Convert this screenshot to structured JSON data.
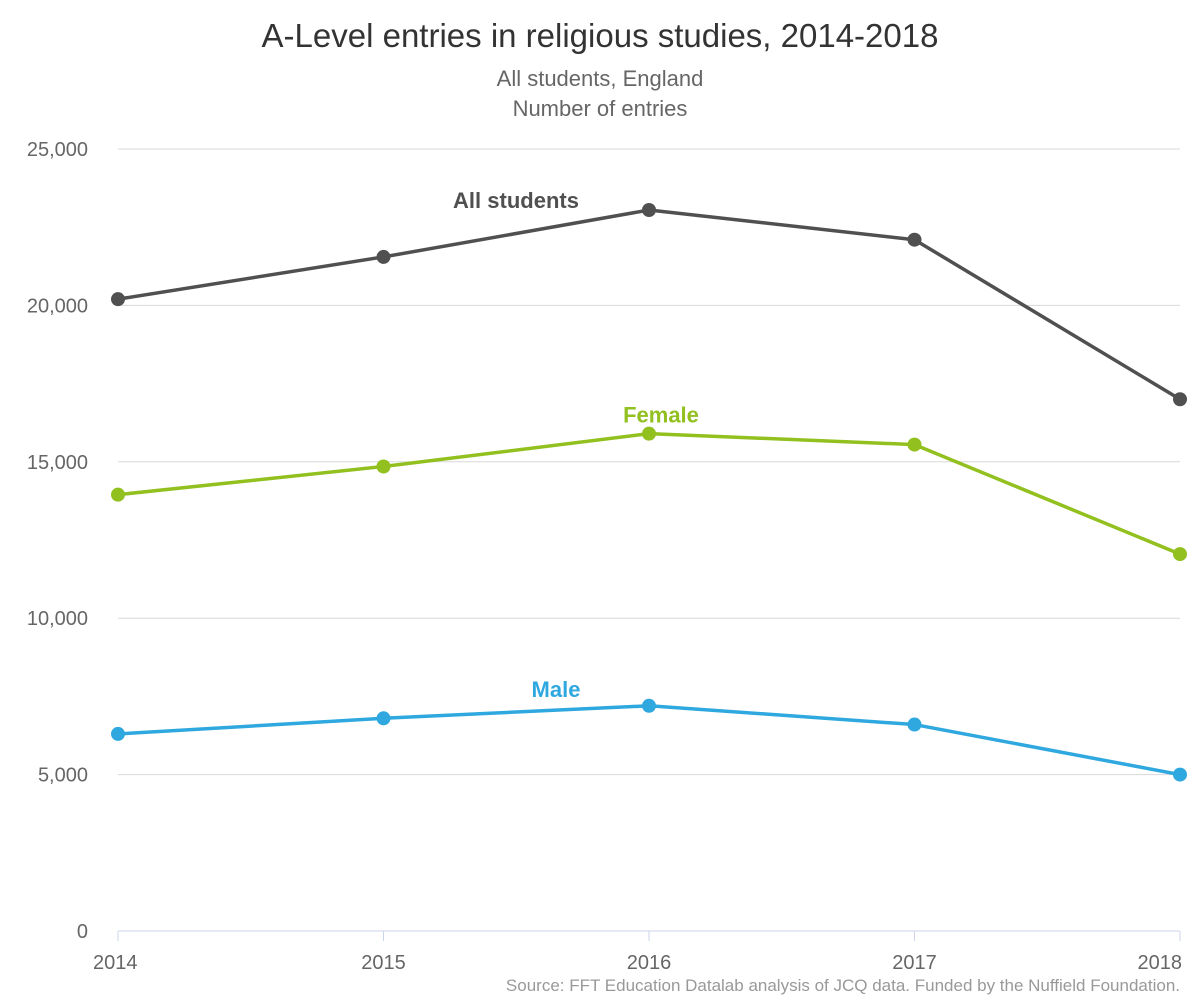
{
  "chart_data": {
    "type": "line",
    "title": "A-Level entries in religious studies, 2014-2018",
    "subtitle_lines": [
      "All students, England",
      "Number of entries"
    ],
    "x": [
      "2014",
      "2015",
      "2016",
      "2017",
      "2018"
    ],
    "ylim": [
      0,
      25000
    ],
    "y_ticks": [
      0,
      5000,
      10000,
      15000,
      20000,
      25000
    ],
    "y_tick_labels": [
      "0",
      "5,000",
      "10,000",
      "15,000",
      "20,000",
      "25,000"
    ],
    "grid": true,
    "legend": "inline labels",
    "series": [
      {
        "name": "All students",
        "values": [
          20200,
          21550,
          23050,
          22100,
          17000
        ],
        "color": "#505050"
      },
      {
        "name": "Female",
        "values": [
          13950,
          14850,
          15900,
          15550,
          12050
        ],
        "color": "#92c01f"
      },
      {
        "name": "Male",
        "values": [
          6300,
          6800,
          7200,
          6600,
          5000
        ],
        "color": "#2fa8df"
      }
    ],
    "source": "Source: FFT Education Datalab analysis of JCQ data. Funded by the Nuffield Foundation."
  }
}
